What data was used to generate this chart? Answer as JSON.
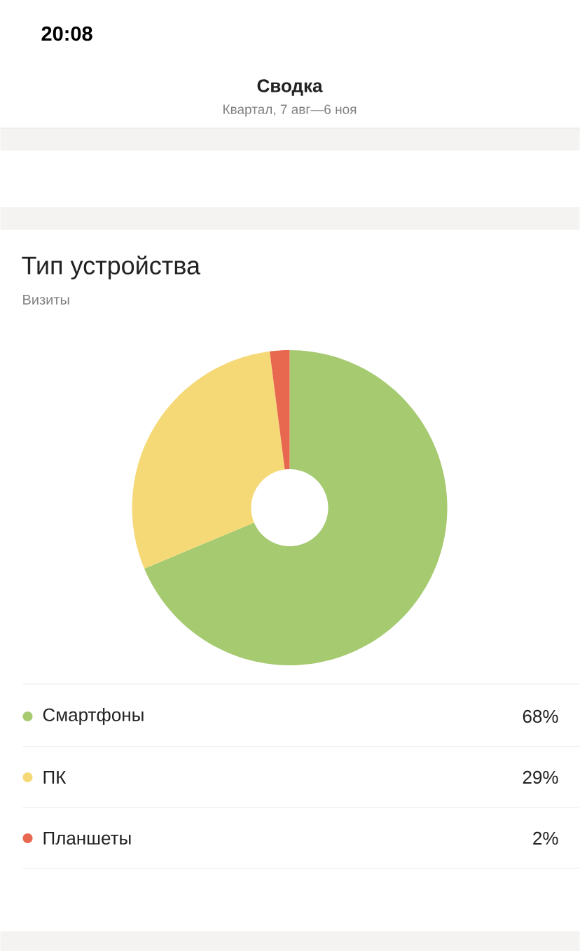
{
  "chart_data": {
    "type": "donut",
    "title": "Тип устройства",
    "subtitle": "Визиты",
    "categories": [
      "Смартфоны",
      "ПК",
      "Планшеты"
    ],
    "values": [
      68,
      29,
      2
    ],
    "value_labels": [
      "68%",
      "29%",
      "2%"
    ],
    "colors": [
      "#a5ca70",
      "#f6d977",
      "#e8674f"
    ],
    "legend": "bottom",
    "annotations": [
      "20:08",
      "Сводка",
      "Квартал, 7 авг—6 ноя"
    ]
  }
}
